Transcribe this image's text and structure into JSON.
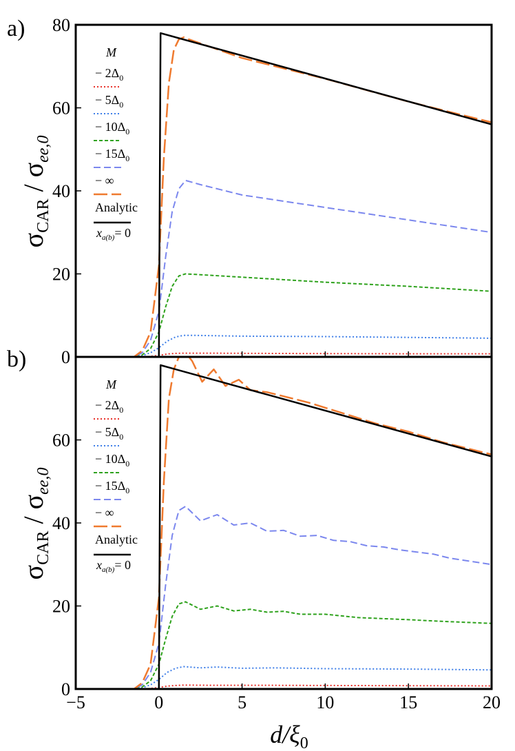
{
  "figure": {
    "x_label": {
      "main": "d/ξ",
      "sub": "0"
    },
    "y_label": {
      "sigma1": "σ",
      "sub1": "CAR",
      "slash": " / ",
      "sigma2": "σ",
      "sub2": "ee,0"
    }
  },
  "legend": {
    "header": "M",
    "entries": [
      {
        "label": "− 2Δ",
        "sub": "0",
        "series": "2Δ0"
      },
      {
        "label": "− 5Δ",
        "sub": "0",
        "series": "5Δ0"
      },
      {
        "label": "− 10Δ",
        "sub": "0",
        "series": "10Δ0"
      },
      {
        "label": "− 15Δ",
        "sub": "0",
        "series": "15Δ0"
      },
      {
        "label": "− ∞",
        "sub": "",
        "series": "inf"
      },
      {
        "label": "Analytic",
        "sub": "",
        "series": "analytic"
      }
    ],
    "note": {
      "var": "x",
      "sub": "a(b)",
      "rest": "= 0"
    }
  },
  "chart_data": [
    {
      "type": "line",
      "panel_label": "a)",
      "xlabel": "d/ξ0",
      "ylabel": "σCAR / σee,0",
      "xlim": [
        -5,
        20
      ],
      "ylim": [
        0,
        80
      ],
      "xticks": [
        -5,
        0,
        5,
        10,
        15,
        20
      ],
      "yticks": [
        0,
        20,
        40,
        60,
        80
      ],
      "ytick_labels": [
        "0",
        "20",
        "40",
        "60",
        "80"
      ],
      "series": [
        {
          "name": "2Δ0",
          "color": "#e8312a",
          "dash": "2,3",
          "width": 2,
          "x": [
            -5,
            -1.2,
            -0.6,
            0,
            0.5,
            1.0,
            1.5,
            3,
            6,
            10,
            15,
            20
          ],
          "y": [
            0,
            0,
            0.1,
            0.35,
            0.7,
            0.85,
            0.9,
            0.9,
            0.85,
            0.8,
            0.75,
            0.75
          ]
        },
        {
          "name": "5Δ0",
          "color": "#3d7ee8",
          "dash": "2,3",
          "width": 2,
          "x": [
            -5,
            -1.5,
            -1.0,
            -0.5,
            0,
            0.5,
            1.0,
            1.5,
            2,
            5,
            10,
            15,
            20
          ],
          "y": [
            0,
            0,
            0.3,
            1.0,
            2.2,
            3.8,
            4.8,
            5.2,
            5.2,
            5.0,
            4.9,
            4.7,
            4.5
          ]
        },
        {
          "name": "10Δ0",
          "color": "#2ea21c",
          "dash": "5,3",
          "width": 2,
          "x": [
            -5,
            -1.5,
            -1.0,
            -0.5,
            0,
            0.4,
            0.8,
            1.2,
            1.6,
            2.5,
            5,
            10,
            15,
            20
          ],
          "y": [
            0,
            0,
            0.5,
            2,
            6,
            12,
            17,
            19.5,
            20,
            19.8,
            19.2,
            18,
            17,
            15.8
          ]
        },
        {
          "name": "15Δ0",
          "color": "#7b87ee",
          "dash": "10,5",
          "width": 2,
          "x": [
            -5,
            -1.5,
            -1.0,
            -0.5,
            0,
            0.4,
            0.8,
            1.2,
            1.6,
            2.5,
            5,
            10,
            15,
            20
          ],
          "y": [
            0,
            0,
            1,
            4,
            11,
            24,
            35,
            40.5,
            42.5,
            41.5,
            39,
            36,
            33,
            30
          ]
        },
        {
          "name": "inf",
          "color": "#ef7a2f",
          "dash": "20,6",
          "width": 2.5,
          "x": [
            -5,
            -1.5,
            -1.0,
            -0.5,
            0,
            0.3,
            0.6,
            0.9,
            1.2,
            1.5,
            1.8,
            2.5,
            5,
            10,
            15,
            20
          ],
          "y": [
            0,
            0,
            1.5,
            6,
            22,
            48,
            66,
            74,
            76.5,
            77,
            76.5,
            75.5,
            72,
            67,
            61.5,
            56.5
          ]
        },
        {
          "name": "analytic",
          "color": "#000000",
          "dash": "",
          "width": 2.5,
          "x": [
            -5,
            0,
            0,
            0.1,
            20
          ],
          "y": [
            0,
            0,
            0,
            78,
            56
          ]
        }
      ]
    },
    {
      "type": "line",
      "panel_label": "b)",
      "xlabel": "d/ξ0",
      "ylabel": "σCAR / σee,0",
      "xlim": [
        -5,
        20
      ],
      "ylim": [
        0,
        80
      ],
      "xticks": [
        -5,
        0,
        5,
        10,
        15,
        20
      ],
      "xtick_labels": [
        "−5",
        "0",
        "5",
        "10",
        "15",
        "20"
      ],
      "yticks": [
        0,
        20,
        40,
        60,
        80
      ],
      "ytick_labels": [
        "0",
        "20",
        "40",
        "60",
        ""
      ],
      "series": [
        {
          "name": "2Δ0",
          "color": "#e8312a",
          "dash": "2,3",
          "width": 2,
          "x": [
            -5,
            -1.2,
            -0.6,
            0,
            0.5,
            1.0,
            1.5,
            3,
            6,
            10,
            15,
            20
          ],
          "y": [
            0,
            0,
            0.1,
            0.35,
            0.7,
            0.85,
            0.95,
            0.9,
            0.9,
            0.85,
            0.8,
            0.75
          ]
        },
        {
          "name": "5Δ0",
          "color": "#3d7ee8",
          "dash": "2,3",
          "width": 2,
          "x": [
            -5,
            -1.5,
            -1.0,
            -0.5,
            0,
            0.5,
            1.0,
            1.5,
            2.5,
            3.5,
            5,
            7,
            10,
            15,
            20
          ],
          "y": [
            0,
            0,
            0.3,
            1.0,
            2.3,
            4.0,
            5.0,
            5.4,
            5.1,
            5.3,
            5.0,
            5.1,
            4.9,
            4.8,
            4.6
          ]
        },
        {
          "name": "10Δ0",
          "color": "#2ea21c",
          "dash": "5,3",
          "width": 2,
          "x": [
            -5,
            -1.5,
            -1.0,
            -0.5,
            0,
            0.4,
            0.8,
            1.2,
            1.6,
            2.5,
            3.5,
            4.5,
            5.5,
            6.5,
            7.5,
            8.5,
            10,
            12,
            15,
            17,
            20
          ],
          "y": [
            0,
            0,
            0.5,
            2,
            6,
            12,
            17.5,
            20.5,
            21,
            19.2,
            20,
            18.8,
            19.2,
            18.5,
            18.7,
            18,
            18,
            17.2,
            16.7,
            16.3,
            15.8
          ]
        },
        {
          "name": "15Δ0",
          "color": "#7b87ee",
          "dash": "10,5",
          "width": 2,
          "x": [
            -5,
            -1.5,
            -1.0,
            -0.5,
            0,
            0.4,
            0.8,
            1.2,
            1.6,
            2.5,
            3.5,
            4.5,
            5.5,
            6.5,
            7.5,
            8.5,
            9.5,
            10.5,
            11.5,
            12.5,
            13.5,
            14.5,
            15.5,
            16.5,
            17.5,
            20
          ],
          "y": [
            0,
            0,
            1,
            4,
            11,
            25,
            37,
            43,
            44,
            40.5,
            42,
            39.5,
            40,
            38,
            38.2,
            36.8,
            37,
            35.8,
            35.5,
            34.5,
            34.2,
            33.5,
            33,
            32.5,
            31.5,
            30
          ]
        },
        {
          "name": "inf",
          "color": "#ef7a2f",
          "dash": "20,6",
          "width": 2.5,
          "x": [
            -5,
            -1.5,
            -1.0,
            -0.5,
            0,
            0.3,
            0.6,
            0.9,
            1.2,
            1.6,
            2.0,
            2.6,
            3.3,
            4.0,
            4.8,
            5.5,
            6.5,
            7.5,
            9,
            11,
            13,
            15,
            17,
            20
          ],
          "y": [
            0,
            0,
            1.5,
            6,
            22,
            50,
            70,
            77,
            80,
            81,
            79,
            74,
            77,
            73,
            74.5,
            72,
            71.5,
            70.5,
            69,
            66.5,
            64,
            62,
            59.5,
            56.5
          ]
        },
        {
          "name": "analytic",
          "color": "#000000",
          "dash": "",
          "width": 2.5,
          "x": [
            -5,
            0,
            0,
            0.1,
            20
          ],
          "y": [
            0,
            0,
            0,
            78,
            56
          ]
        }
      ]
    }
  ]
}
